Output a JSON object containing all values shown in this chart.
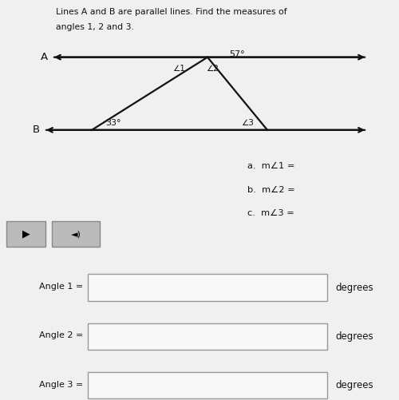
{
  "title_line1": "Lines A and B are parallel lines. Find the measures of",
  "title_line2": "angles 1, 2 and 3.",
  "line_A_label": "A",
  "line_B_label": "B",
  "angle_57_label": "57°",
  "angle_33_label": "33°",
  "angle1_label": "∠1",
  "angle2_label": "∠2",
  "angle3_label": "∠3",
  "questions_a": "a.  m∠1 =",
  "questions_b": "b.  m∠2 =",
  "questions_c": "c.  m∠3 =",
  "input_label1": "ngle 1 =",
  "input_label2": "ngle 2 =",
  "input_label3": "ngle 3 =",
  "degrees_label": "degrees",
  "bg_top": "#f0f0f0",
  "bg_bottom": "#d8d8d8",
  "line_color": "#111111",
  "text_color": "#111111",
  "box_facecolor": "#f8f8f8",
  "box_edgecolor": "#999999",
  "button_face": "#bbbbbb",
  "button_edge": "#888888"
}
